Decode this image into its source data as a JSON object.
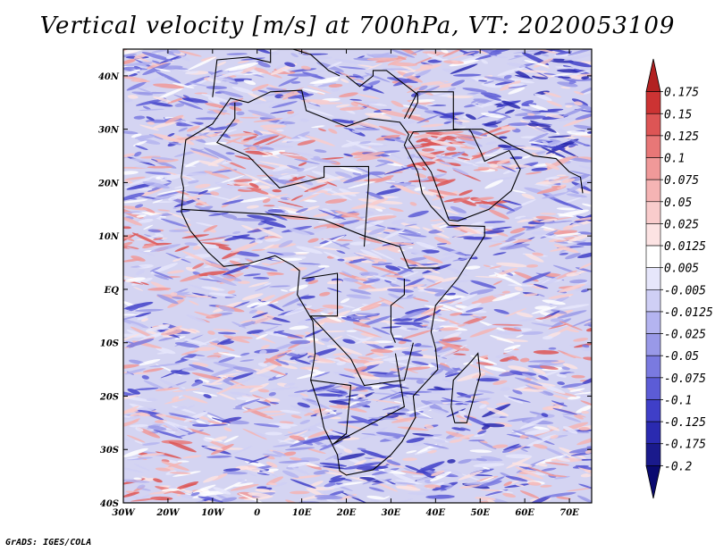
{
  "title": "Vertical velocity [m/s] at 700hPa, VT: 2020053109",
  "footer": "GrADS: IGES/COLA",
  "chart_data": {
    "type": "heatmap",
    "title": "Vertical velocity [m/s] at 700hPa, VT: 2020053109",
    "variable": "Vertical velocity",
    "units": "m/s",
    "level": "700hPa",
    "valid_time": "2020053109",
    "x_axis": {
      "range": [
        -30,
        75
      ],
      "tick_values": [
        -30,
        -20,
        -10,
        0,
        10,
        20,
        30,
        40,
        50,
        60,
        70
      ],
      "tick_labels": [
        "30W",
        "20W",
        "10W",
        "0",
        "10E",
        "20E",
        "30E",
        "40E",
        "50E",
        "60E",
        "70E"
      ]
    },
    "y_axis": {
      "range": [
        -40,
        45
      ],
      "tick_values": [
        -40,
        -30,
        -20,
        -10,
        0,
        10,
        20,
        30,
        40
      ],
      "tick_labels": [
        "40S",
        "30S",
        "20S",
        "10S",
        "EQ",
        "10N",
        "20N",
        "30N",
        "40N"
      ]
    },
    "colorbar": {
      "labels": [
        "0.175",
        "0.15",
        "0.125",
        "0.1",
        "0.075",
        "0.05",
        "0.025",
        "0.0125",
        "0.005",
        "-0.005",
        "-0.0125",
        "-0.025",
        "-0.05",
        "-0.075",
        "-0.1",
        "-0.125",
        "-0.175",
        "-0.2"
      ],
      "colors": [
        "#b22222",
        "#cc3333",
        "#dd5555",
        "#e87777",
        "#f09999",
        "#f5b4b4",
        "#f9cccc",
        "#fce3e3",
        "#ffffff",
        "#e6e6fb",
        "#cfcff5",
        "#b4b4f0",
        "#9999e8",
        "#7a7ae0",
        "#5c5cd6",
        "#3f3fc8",
        "#2a2ab0",
        "#1a1a8c",
        "#0a0a70"
      ]
    }
  }
}
